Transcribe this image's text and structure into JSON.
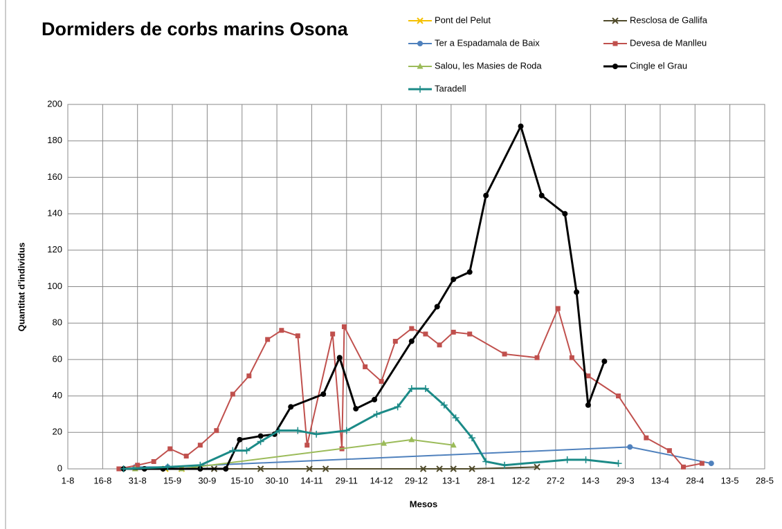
{
  "chart_data": {
    "type": "line",
    "title": "Dormiders de corbs marins Osona",
    "x_label": "Mesos",
    "y_label": "Quantitat d'individus",
    "xlim": [
      0,
      300
    ],
    "xticks": [
      {
        "value": 0,
        "label": "1-8"
      },
      {
        "value": 15,
        "label": "16-8"
      },
      {
        "value": 30,
        "label": "31-8"
      },
      {
        "value": 45,
        "label": "15-9"
      },
      {
        "value": 60,
        "label": "30-9"
      },
      {
        "value": 75,
        "label": "15-10"
      },
      {
        "value": 90,
        "label": "30-10"
      },
      {
        "value": 105,
        "label": "14-11"
      },
      {
        "value": 120,
        "label": "29-11"
      },
      {
        "value": 135,
        "label": "14-12"
      },
      {
        "value": 150,
        "label": "29-12"
      },
      {
        "value": 165,
        "label": "13-1"
      },
      {
        "value": 180,
        "label": "28-1"
      },
      {
        "value": 195,
        "label": "12-2"
      },
      {
        "value": 210,
        "label": "27-2"
      },
      {
        "value": 225,
        "label": "14-3"
      },
      {
        "value": 240,
        "label": "29-3"
      },
      {
        "value": 255,
        "label": "13-4"
      },
      {
        "value": 270,
        "label": "28-4"
      },
      {
        "value": 285,
        "label": "13-5"
      },
      {
        "value": 300,
        "label": "28-5"
      }
    ],
    "ylim": [
      0,
      200
    ],
    "yticks": [
      0,
      20,
      40,
      60,
      80,
      100,
      120,
      140,
      160,
      180,
      200
    ],
    "grid": true,
    "series": [
      {
        "name": "Pont del Pelut",
        "color": "#f5c000",
        "marker": "x",
        "width": 2,
        "x": [
          42,
          49
        ],
        "values": [
          0,
          0
        ]
      },
      {
        "name": "Resclosa de Gallifa",
        "color": "#4f4a2a",
        "marker": "x",
        "width": 2,
        "x": [
          63,
          83,
          104,
          111,
          153,
          160,
          166,
          174,
          202
        ],
        "values": [
          0,
          0,
          0,
          0,
          0,
          0,
          0,
          0,
          1
        ]
      },
      {
        "name": "Ter a Espadamala de Baix",
        "color": "#4f81bd",
        "marker": "circle",
        "width": 2,
        "x": [
          29,
          43,
          242,
          277
        ],
        "values": [
          1,
          1,
          12,
          3
        ]
      },
      {
        "name": "Devesa de Manlleu",
        "color": "#c0504d",
        "marker": "square",
        "width": 2,
        "x": [
          22,
          30,
          37,
          44,
          51,
          57,
          64,
          71,
          78,
          86,
          92,
          99,
          103,
          114,
          118,
          119,
          128,
          135,
          141,
          148,
          154,
          160,
          166,
          173,
          188,
          202,
          211,
          217,
          224,
          237,
          249,
          259,
          265,
          273
        ],
        "values": [
          0,
          2,
          4,
          11,
          7,
          13,
          21,
          41,
          51,
          71,
          76,
          73,
          13,
          74,
          11,
          78,
          56,
          48,
          70,
          77,
          74,
          68,
          75,
          74,
          63,
          61,
          88,
          61,
          51,
          40,
          17,
          10,
          1,
          3
        ]
      },
      {
        "name": "Salou, les Masies de Roda",
        "color": "#9bbb59",
        "marker": "triangle",
        "width": 2,
        "x": [
          29,
          49,
          136,
          148,
          166
        ],
        "values": [
          0,
          0,
          14,
          16,
          13
        ]
      },
      {
        "name": "Cingle el Grau",
        "color": "#000000",
        "marker": "circle",
        "width": 3,
        "x": [
          24,
          33,
          41,
          57,
          68,
          74,
          83,
          89,
          96,
          110,
          117,
          124,
          132,
          148,
          159,
          166,
          173,
          180,
          195,
          204,
          214,
          219,
          224,
          231
        ],
        "values": [
          0,
          0,
          0,
          0,
          0,
          16,
          18,
          19,
          34,
          41,
          61,
          33,
          38,
          70,
          89,
          104,
          108,
          150,
          188,
          150,
          140,
          97,
          35,
          59
        ]
      },
      {
        "name": "Taradell",
        "color": "#1b8a87",
        "marker": "plus",
        "width": 3,
        "x": [
          24,
          43,
          57,
          71,
          77,
          83,
          91,
          99,
          107,
          120,
          133,
          142,
          148,
          154,
          162,
          167,
          174,
          180,
          188,
          215,
          223,
          237
        ],
        "values": [
          0,
          1,
          2,
          10,
          10,
          15,
          21,
          21,
          19,
          21,
          30,
          34,
          44,
          44,
          35,
          28,
          17,
          4,
          2,
          5,
          5,
          3
        ]
      }
    ]
  }
}
